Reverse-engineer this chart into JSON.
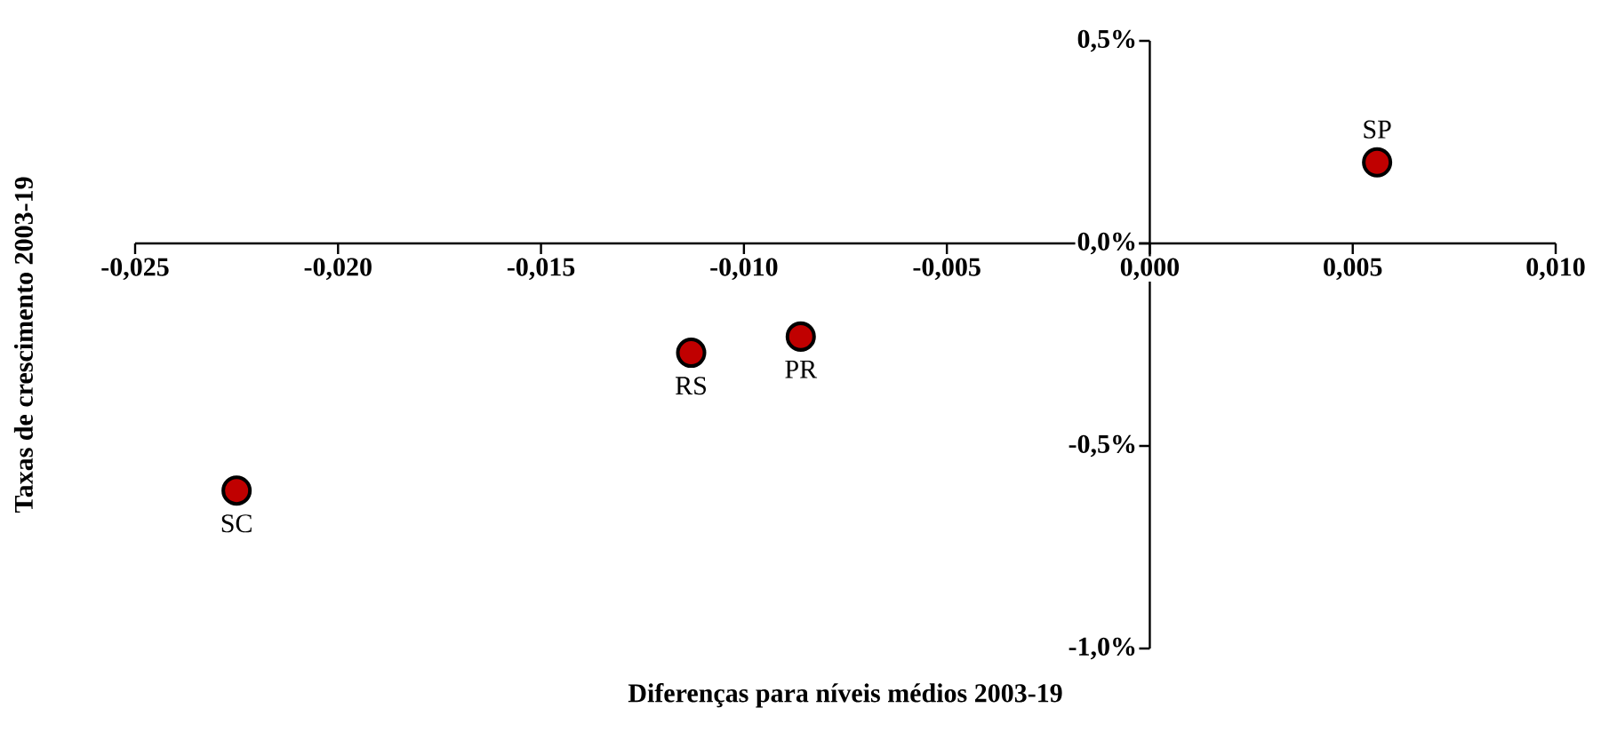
{
  "chart_data": {
    "type": "scatter",
    "xlabel": "Diferenças para níveis médios 2003-19",
    "ylabel": "Taxas de crescimento 2003-19",
    "x": [
      -0.0225,
      -0.0113,
      -0.0086,
      0.0056
    ],
    "series": [
      {
        "color": "#c00000",
        "values": [
          -0.61,
          -0.27,
          -0.23,
          0.2
        ]
      }
    ],
    "xlim": [
      -0.025,
      0.01
    ],
    "xticks": [
      {
        "value": -0.025,
        "label": "-0,025"
      },
      {
        "value": -0.02,
        "label": "-0,020"
      },
      {
        "value": -0.015,
        "label": "-0,015"
      },
      {
        "value": -0.01,
        "label": "-0,010"
      },
      {
        "value": -0.005,
        "label": "-0,005"
      },
      {
        "value": 0,
        "label": "0,000"
      },
      {
        "value": 0.005,
        "label": "0,005"
      },
      {
        "value": 0.01,
        "label": "0,010"
      }
    ],
    "ylim": [
      -1.0,
      0.5
    ],
    "yticks": [
      {
        "value": -1.0,
        "label": "-1,0%"
      },
      {
        "value": -0.5,
        "label": "-0,5%"
      },
      {
        "value": 0,
        "label": "0,0%"
      },
      {
        "value": 0.5,
        "label": "0,5%"
      }
    ],
    "annotations": [
      {
        "text": "SC",
        "x": -0.0225,
        "y": -0.61
      },
      {
        "text": "RS",
        "x": -0.0113,
        "y": -0.27
      },
      {
        "text": "PR",
        "x": -0.0086,
        "y": -0.23
      },
      {
        "text": "SP",
        "x": 0.0056,
        "y": 0.2
      }
    ]
  }
}
